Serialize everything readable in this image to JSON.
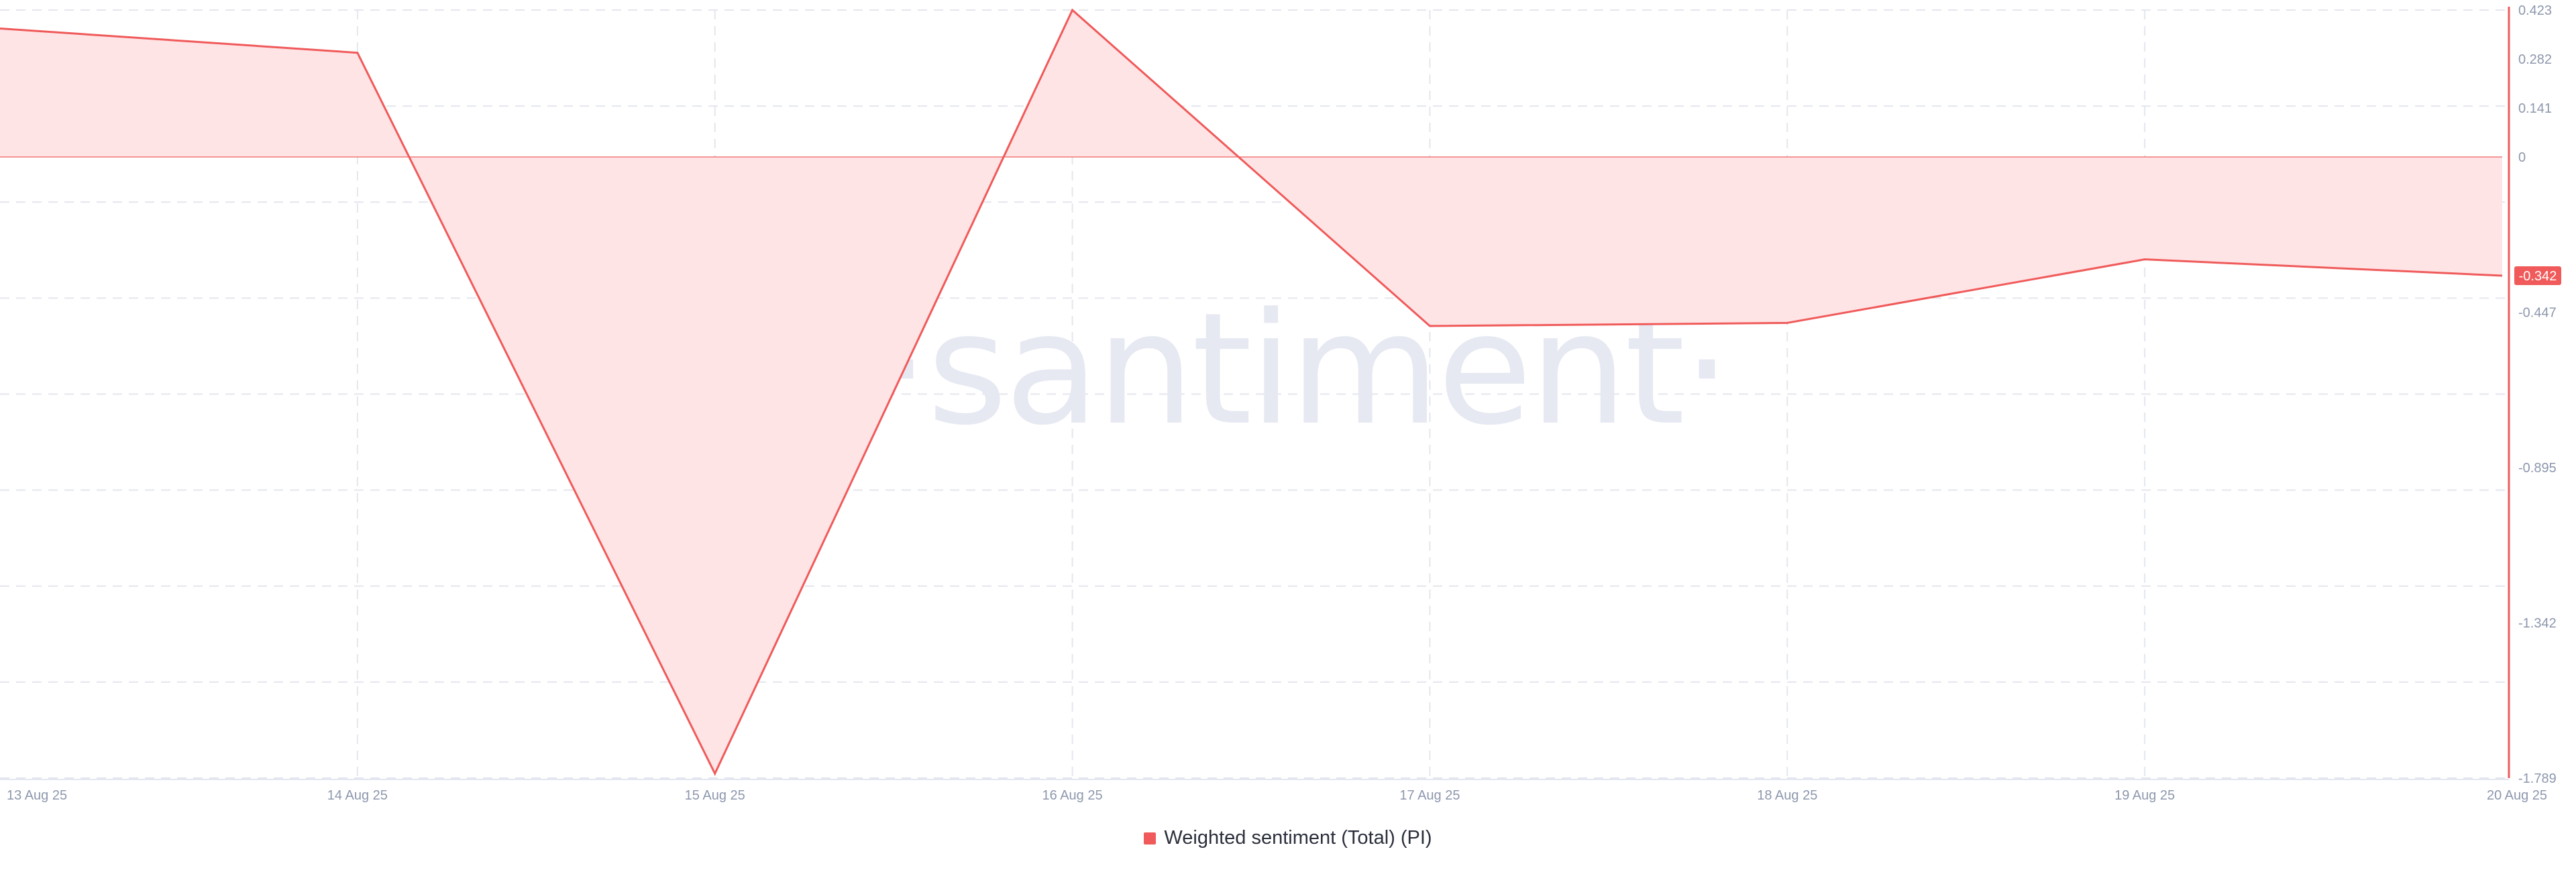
{
  "watermark": "·santiment·",
  "colors": {
    "series": "#f05a5a",
    "fill": "#ffe4e6",
    "grid": "#e3e6ee",
    "tick": "#8d97ad",
    "badge_text": "#ffffff"
  },
  "chart_data": {
    "type": "area",
    "title": "",
    "xlabel": "",
    "ylabel": "",
    "x": [
      "13 Aug 25",
      "14 Aug 25",
      "15 Aug 25",
      "16 Aug 25",
      "17 Aug 25",
      "18 Aug 25",
      "19 Aug 25",
      "20 Aug 25"
    ],
    "series": [
      {
        "name": "Weighted sentiment (Total) (PI)",
        "values": [
          0.37,
          0.3,
          -1.776,
          0.423,
          -0.487,
          -0.478,
          -0.295,
          -0.342
        ]
      }
    ],
    "baseline": 0,
    "ylim": [
      -1.789,
      0.423
    ],
    "yticks": [
      "0.423",
      "0.282",
      "0.141",
      "0",
      "-0.447",
      "-0.895",
      "-1.342",
      "-1.789"
    ],
    "ytick_values": [
      0.423,
      0.282,
      0.141,
      0,
      -0.447,
      -0.895,
      -1.342,
      -1.789
    ],
    "current_value_label": "-0.342",
    "current_value": -0.342,
    "grid": true,
    "legend_position": "bottom-center"
  }
}
